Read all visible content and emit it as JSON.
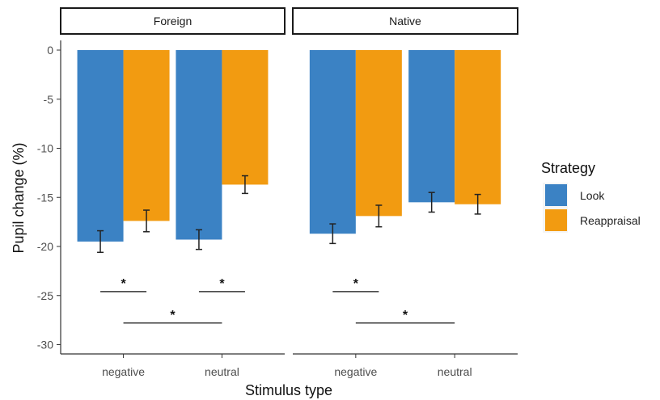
{
  "chart_data": {
    "type": "bar",
    "facets": [
      "Foreign",
      "Native"
    ],
    "categories": [
      "negative",
      "neutral"
    ],
    "xlabel": "Stimulus type",
    "ylabel": "Pupil change (%)",
    "ylim": [
      -31,
      0
    ],
    "yticks": [
      "0",
      "-5",
      "-10",
      "-15",
      "-20",
      "-25",
      "-30"
    ],
    "ytick_values": [
      0,
      -5,
      -10,
      -15,
      -20,
      -25,
      -30
    ],
    "legend": {
      "title": "Strategy",
      "position": "right"
    },
    "series": [
      {
        "name": "Look",
        "color": "#3b82c4",
        "values": {
          "Foreign": [
            -19.5,
            -19.3
          ],
          "Native": [
            -18.7,
            -15.5
          ]
        },
        "errors": {
          "Foreign": [
            1.1,
            1.0
          ],
          "Native": [
            1.0,
            1.0
          ]
        }
      },
      {
        "name": "Reappraisal",
        "color": "#f29b11",
        "values": {
          "Foreign": [
            -17.4,
            -13.7
          ],
          "Native": [
            -16.9,
            -15.7
          ]
        },
        "errors": {
          "Foreign": [
            1.1,
            0.9
          ],
          "Native": [
            1.1,
            1.0
          ]
        }
      }
    ],
    "significance": [
      {
        "facet": "Foreign",
        "from": [
          0,
          0
        ],
        "to": [
          0,
          1
        ],
        "y": -24.6,
        "label": "*"
      },
      {
        "facet": "Foreign",
        "from": [
          1,
          0
        ],
        "to": [
          1,
          1
        ],
        "y": -24.6,
        "label": "*"
      },
      {
        "facet": "Foreign",
        "from": [
          0,
          0.5
        ],
        "to": [
          1,
          0.5
        ],
        "y": -27.8,
        "label": "*"
      },
      {
        "facet": "Native",
        "from": [
          0,
          0
        ],
        "to": [
          0,
          1
        ],
        "y": -24.6,
        "label": "*"
      },
      {
        "facet": "Native",
        "from": [
          0,
          0.5
        ],
        "to": [
          1,
          0.5
        ],
        "y": -27.8,
        "label": "*"
      }
    ],
    "grid": false
  }
}
